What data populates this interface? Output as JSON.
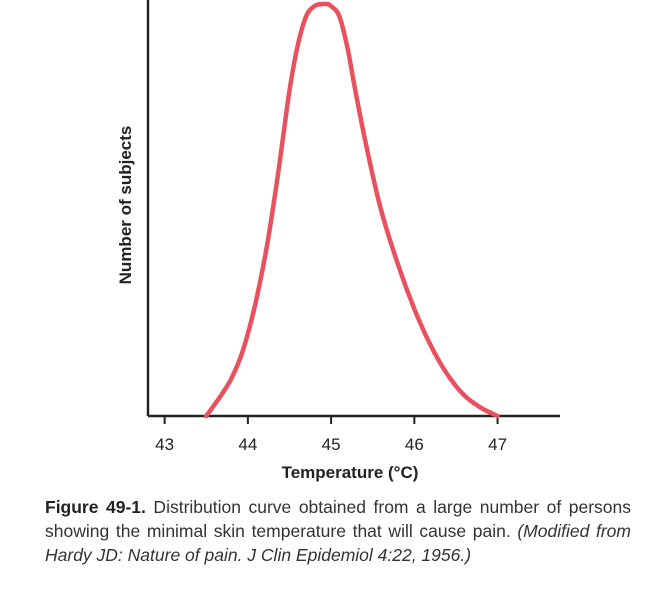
{
  "chart_data": {
    "type": "line",
    "title": "",
    "xlabel": "Temperature (°C)",
    "ylabel": "Number of subjects",
    "xlim": [
      42.8,
      47.75
    ],
    "ylim": [
      0,
      1
    ],
    "xticks": [
      "43",
      "44",
      "45",
      "46",
      "47"
    ],
    "grid": false,
    "legend": "none",
    "series": [
      {
        "color": "#e8525f",
        "x": [
          43.5,
          43.8,
          44.0,
          44.2,
          44.35,
          44.5,
          44.6,
          44.7,
          44.8,
          44.9,
          44.95,
          45.0,
          45.1,
          45.2,
          45.3,
          45.45,
          45.6,
          45.8,
          46.0,
          46.2,
          46.4,
          46.6,
          46.8,
          47.0
        ],
        "y": [
          0.0,
          0.09,
          0.2,
          0.38,
          0.57,
          0.79,
          0.9,
          0.97,
          0.995,
          1.0,
          1.0,
          0.995,
          0.97,
          0.89,
          0.78,
          0.63,
          0.5,
          0.37,
          0.26,
          0.17,
          0.1,
          0.05,
          0.02,
          0.0
        ]
      }
    ]
  },
  "caption": {
    "label": "Figure 49-1.",
    "text": " Distribution curve obtained from a large number of persons showing the minimal skin temperature that will cause pain. ",
    "source": "(Modified from Hardy JD: Nature of pain. J Clin Epidemiol 4:22, 1956.)"
  }
}
